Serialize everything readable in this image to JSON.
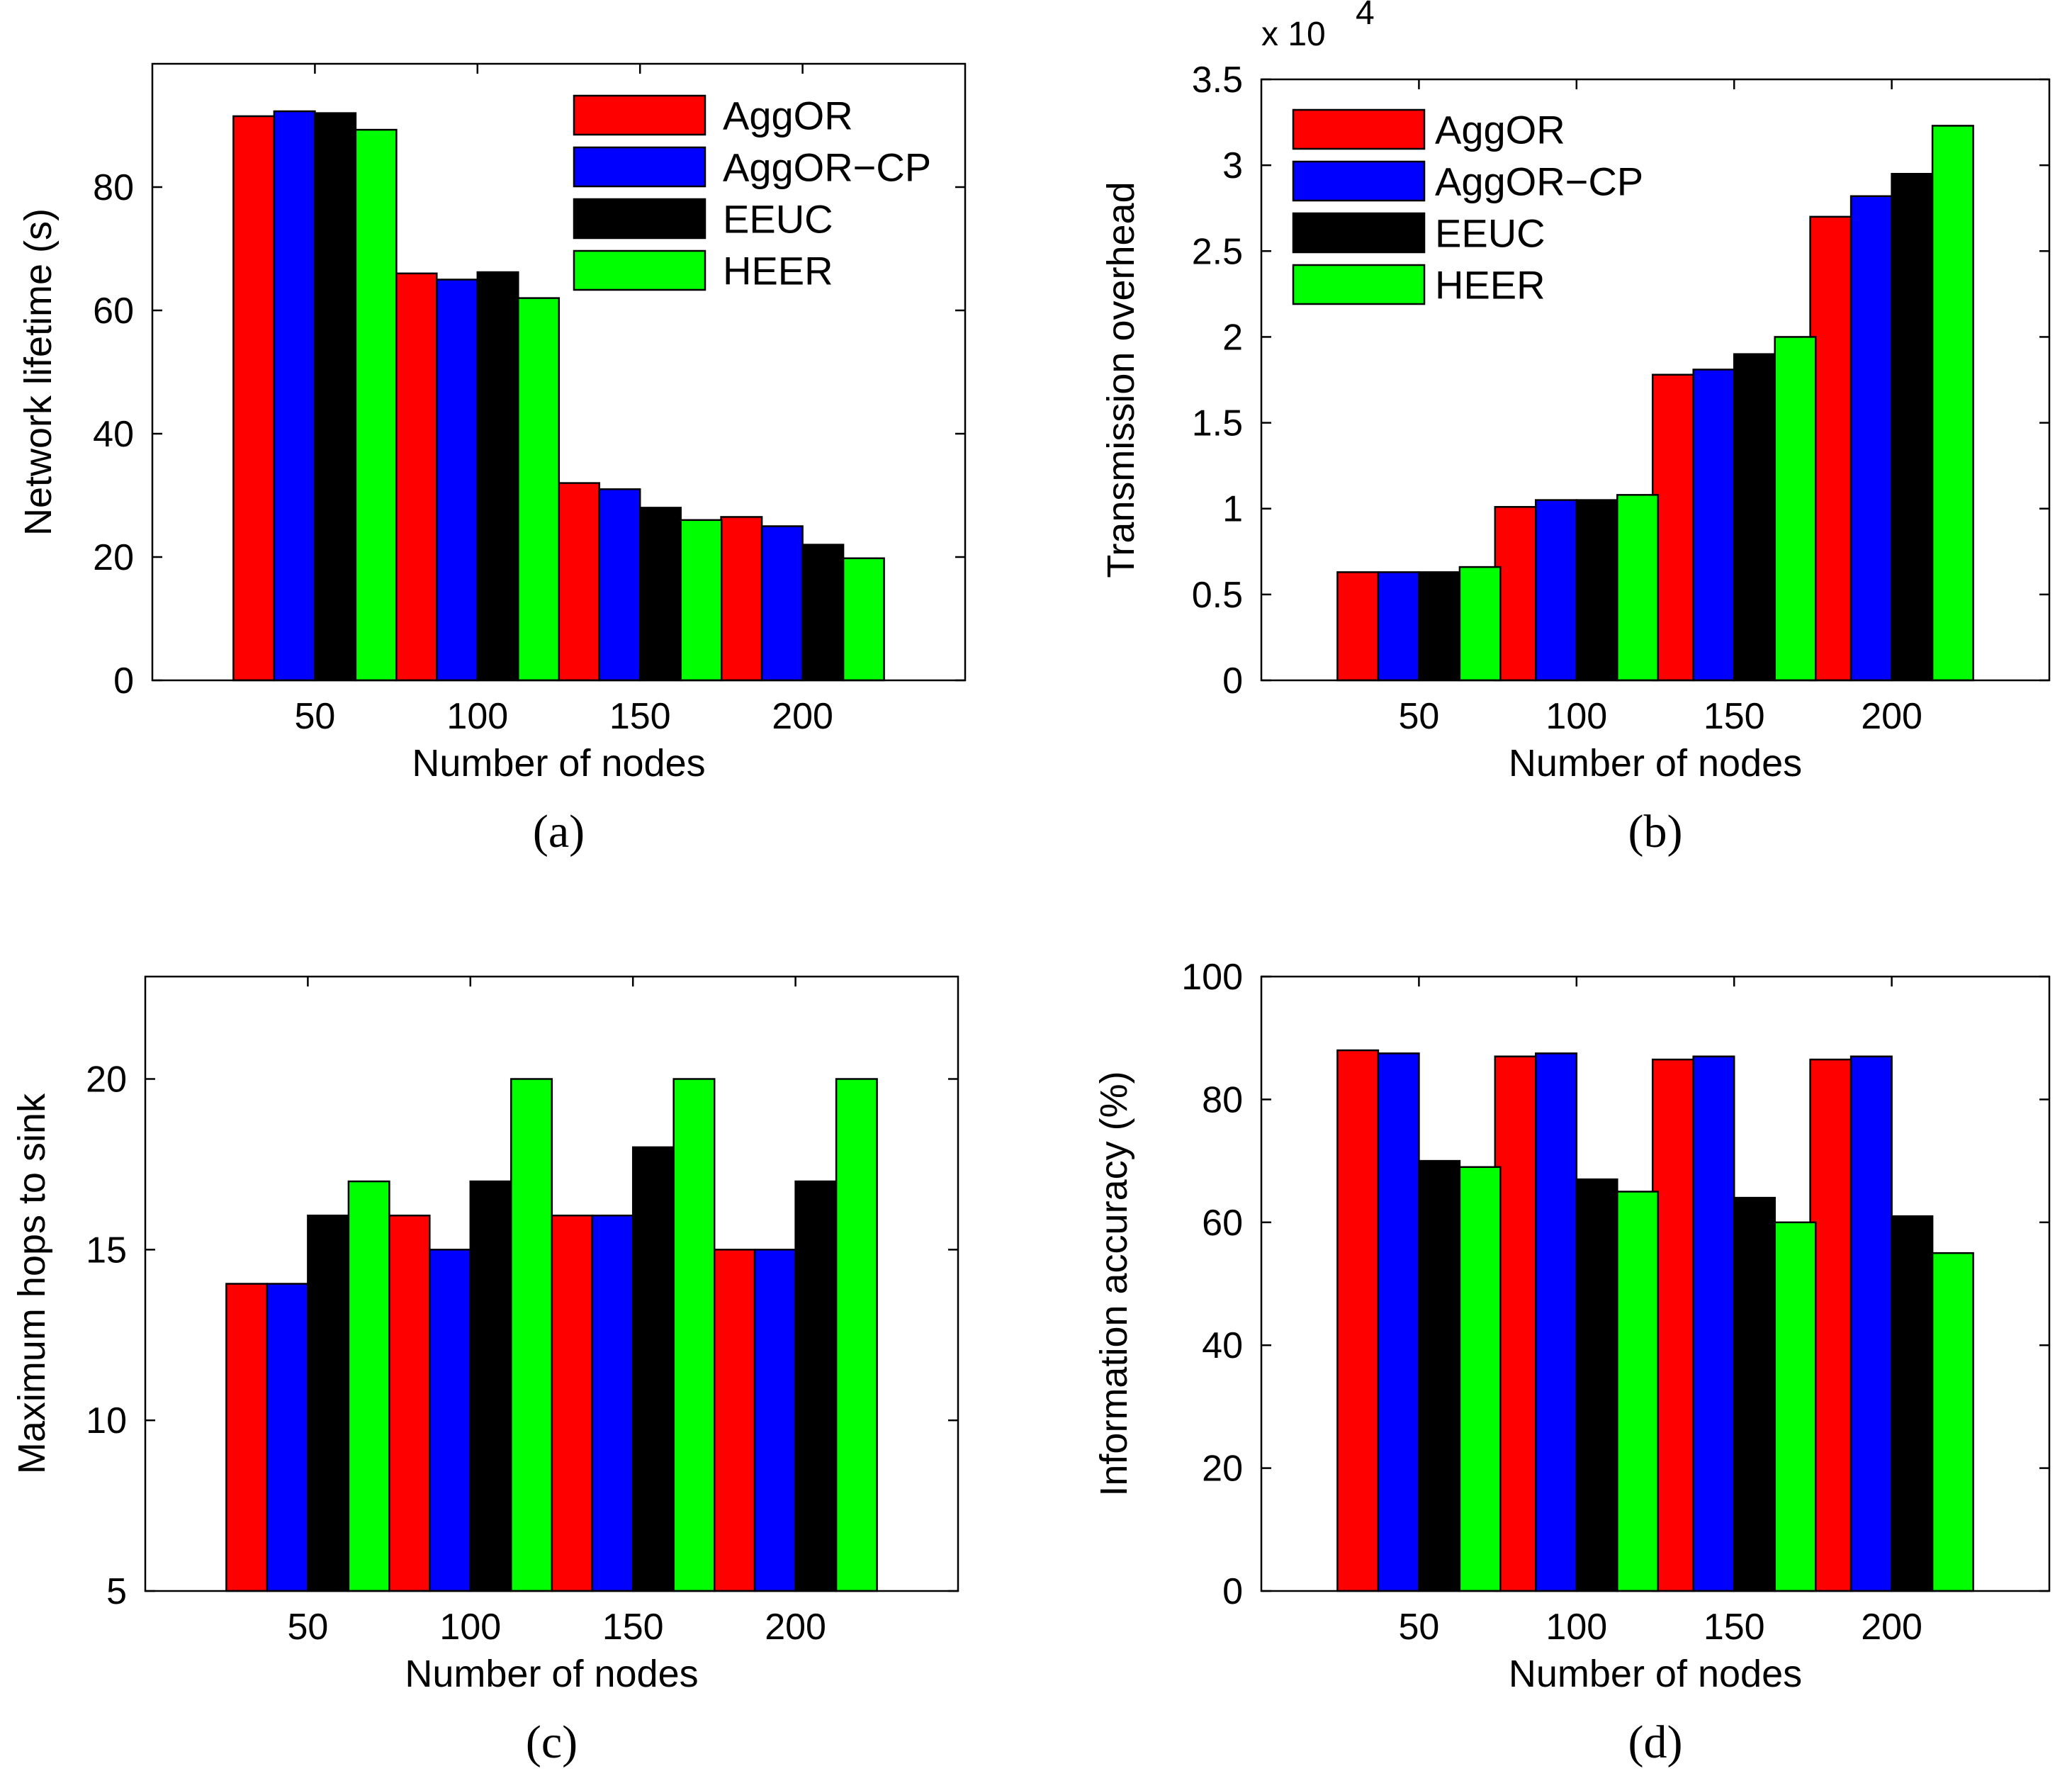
{
  "colors": {
    "AggOR": "#ff0000",
    "AggOR-CP": "#0000ff",
    "EEUC": "#000000",
    "HEER": "#00ff00"
  },
  "chart_data": [
    {
      "panel": "(a)",
      "type": "bar",
      "xlabel": "Number of nodes",
      "ylabel": "Network lifetime (s)",
      "categories": [
        "50",
        "100",
        "150",
        "200"
      ],
      "ylim": [
        0,
        100
      ],
      "yticks": [
        0,
        20,
        40,
        60,
        80
      ],
      "ytick_labels": [
        "0",
        "20",
        "40",
        "60",
        "80"
      ],
      "exponent_label": null,
      "legend": "top-right",
      "series": [
        {
          "name": "AggOR",
          "values": [
            91.5,
            66,
            32,
            26.5
          ]
        },
        {
          "name": "AggOR−CP",
          "values": [
            92.3,
            65,
            31,
            25
          ]
        },
        {
          "name": "EEUC",
          "values": [
            92,
            66.2,
            28,
            22
          ]
        },
        {
          "name": "HEER",
          "values": [
            89.3,
            62,
            26,
            19.8
          ]
        }
      ]
    },
    {
      "panel": "(b)",
      "type": "bar",
      "xlabel": "Number of nodes",
      "ylabel": "Transmission overhead",
      "categories": [
        "50",
        "100",
        "150",
        "200"
      ],
      "ylim": [
        0,
        3.5
      ],
      "yticks": [
        0,
        0.5,
        1,
        1.5,
        2,
        2.5,
        3,
        3.5
      ],
      "ytick_labels": [
        "0",
        "0.5",
        "1",
        "1.5",
        "2",
        "2.5",
        "3",
        "3.5"
      ],
      "exponent_label": "x 10",
      "exponent_power": "4",
      "legend": "top-left",
      "series": [
        {
          "name": "AggOR",
          "values": [
            0.63,
            1.01,
            1.78,
            2.7
          ]
        },
        {
          "name": "AggOR−CP",
          "values": [
            0.63,
            1.05,
            1.81,
            2.82
          ]
        },
        {
          "name": "EEUC",
          "values": [
            0.63,
            1.05,
            1.9,
            2.95
          ]
        },
        {
          "name": "HEER",
          "values": [
            0.66,
            1.08,
            2.0,
            3.23
          ]
        }
      ]
    },
    {
      "panel": "(c)",
      "type": "bar",
      "xlabel": "Number of nodes",
      "ylabel": "Maximum hops to sink",
      "categories": [
        "50",
        "100",
        "150",
        "200"
      ],
      "ylim": [
        5,
        23
      ],
      "yticks": [
        5,
        10,
        15,
        20
      ],
      "ytick_labels": [
        "5",
        "10",
        "15",
        "20"
      ],
      "exponent_label": null,
      "legend": "none",
      "series": [
        {
          "name": "AggOR",
          "values": [
            14,
            16,
            16,
            15
          ]
        },
        {
          "name": "AggOR−CP",
          "values": [
            14,
            15,
            16,
            15
          ]
        },
        {
          "name": "EEUC",
          "values": [
            16,
            17,
            18,
            17
          ]
        },
        {
          "name": "HEER",
          "values": [
            17,
            20,
            20,
            20
          ]
        }
      ]
    },
    {
      "panel": "(d)",
      "type": "bar",
      "xlabel": "Number of nodes",
      "ylabel": "Information accuracy (%)",
      "categories": [
        "50",
        "100",
        "150",
        "200"
      ],
      "ylim": [
        0,
        100
      ],
      "yticks": [
        0,
        20,
        40,
        60,
        80,
        100
      ],
      "ytick_labels": [
        "0",
        "20",
        "40",
        "60",
        "80",
        "100"
      ],
      "exponent_label": null,
      "legend": "none",
      "series": [
        {
          "name": "AggOR",
          "values": [
            88,
            87,
            86.5,
            86.5
          ]
        },
        {
          "name": "AggOR−CP",
          "values": [
            87.5,
            87.5,
            87,
            87
          ]
        },
        {
          "name": "EEUC",
          "values": [
            70,
            67,
            64,
            61
          ]
        },
        {
          "name": "HEER",
          "values": [
            69,
            65,
            60,
            55
          ]
        }
      ]
    }
  ]
}
